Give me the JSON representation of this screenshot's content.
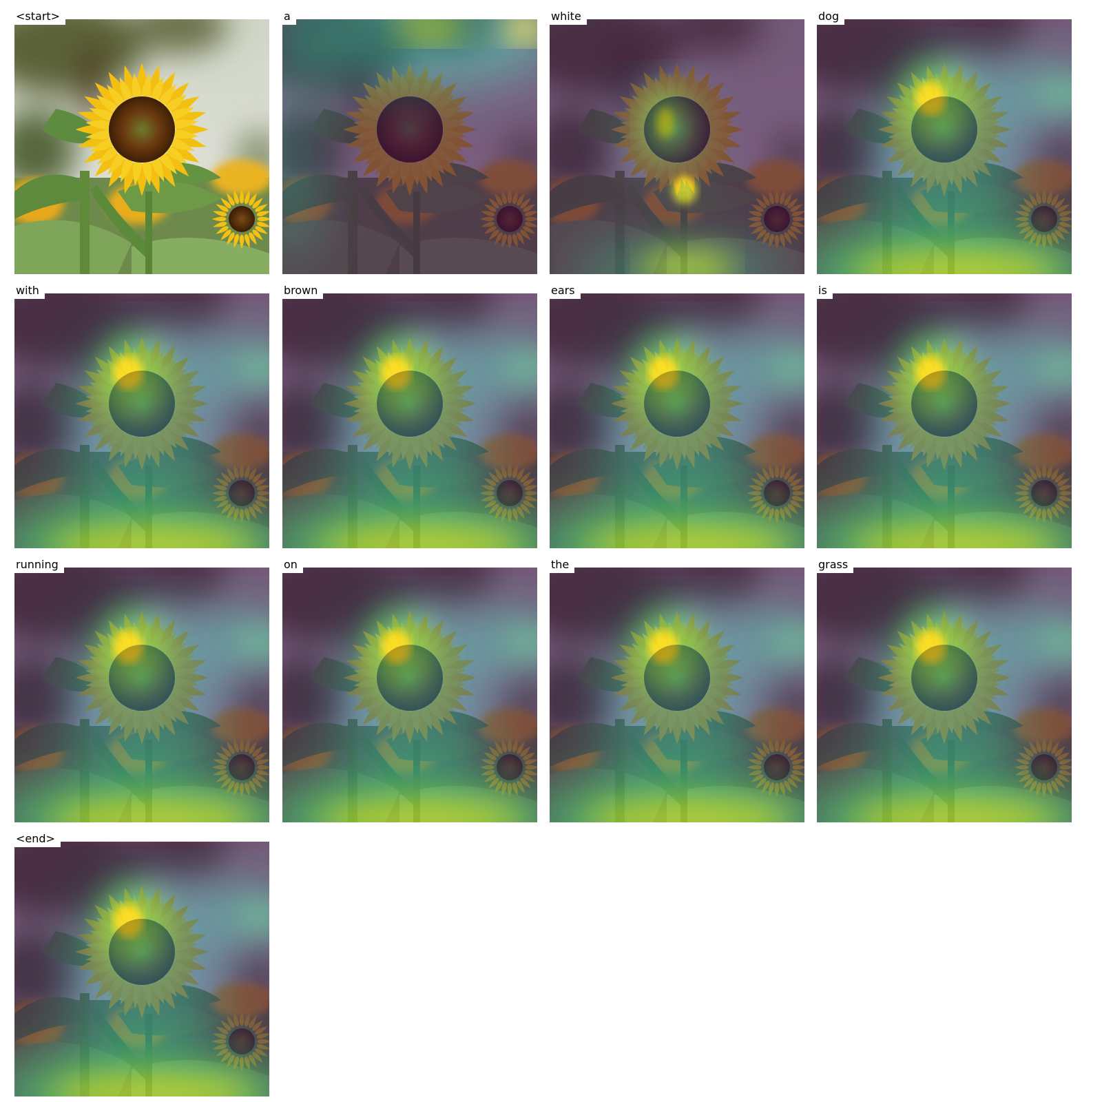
{
  "figure": {
    "source_image": "sunflower photo",
    "overlay_colormap": "viridis",
    "colors": {
      "background": "#ffffff",
      "label_background": "#ffffff",
      "label_text": "#000000"
    },
    "panels": [
      {
        "word": "<start>",
        "kind": "original"
      },
      {
        "word": "a",
        "kind": "attention",
        "focus": "top-right"
      },
      {
        "word": "white",
        "kind": "attention",
        "focus": "flower-center-and-stem"
      },
      {
        "word": "dog",
        "kind": "attention",
        "focus": "flower-head-and-ground"
      },
      {
        "word": "with",
        "kind": "attention",
        "focus": "flower-head-and-ground"
      },
      {
        "word": "brown",
        "kind": "attention",
        "focus": "flower-head-and-ground"
      },
      {
        "word": "ears",
        "kind": "attention",
        "focus": "flower-head-and-ground"
      },
      {
        "word": "is",
        "kind": "attention",
        "focus": "flower-head-and-ground"
      },
      {
        "word": "running",
        "kind": "attention",
        "focus": "flower-head-and-ground"
      },
      {
        "word": "on",
        "kind": "attention",
        "focus": "flower-head-and-ground"
      },
      {
        "word": "the",
        "kind": "attention",
        "focus": "flower-head-and-ground"
      },
      {
        "word": "grass",
        "kind": "attention",
        "focus": "flower-head-and-ground"
      },
      {
        "word": "<end>",
        "kind": "attention",
        "focus": "flower-head-and-ground"
      }
    ]
  }
}
